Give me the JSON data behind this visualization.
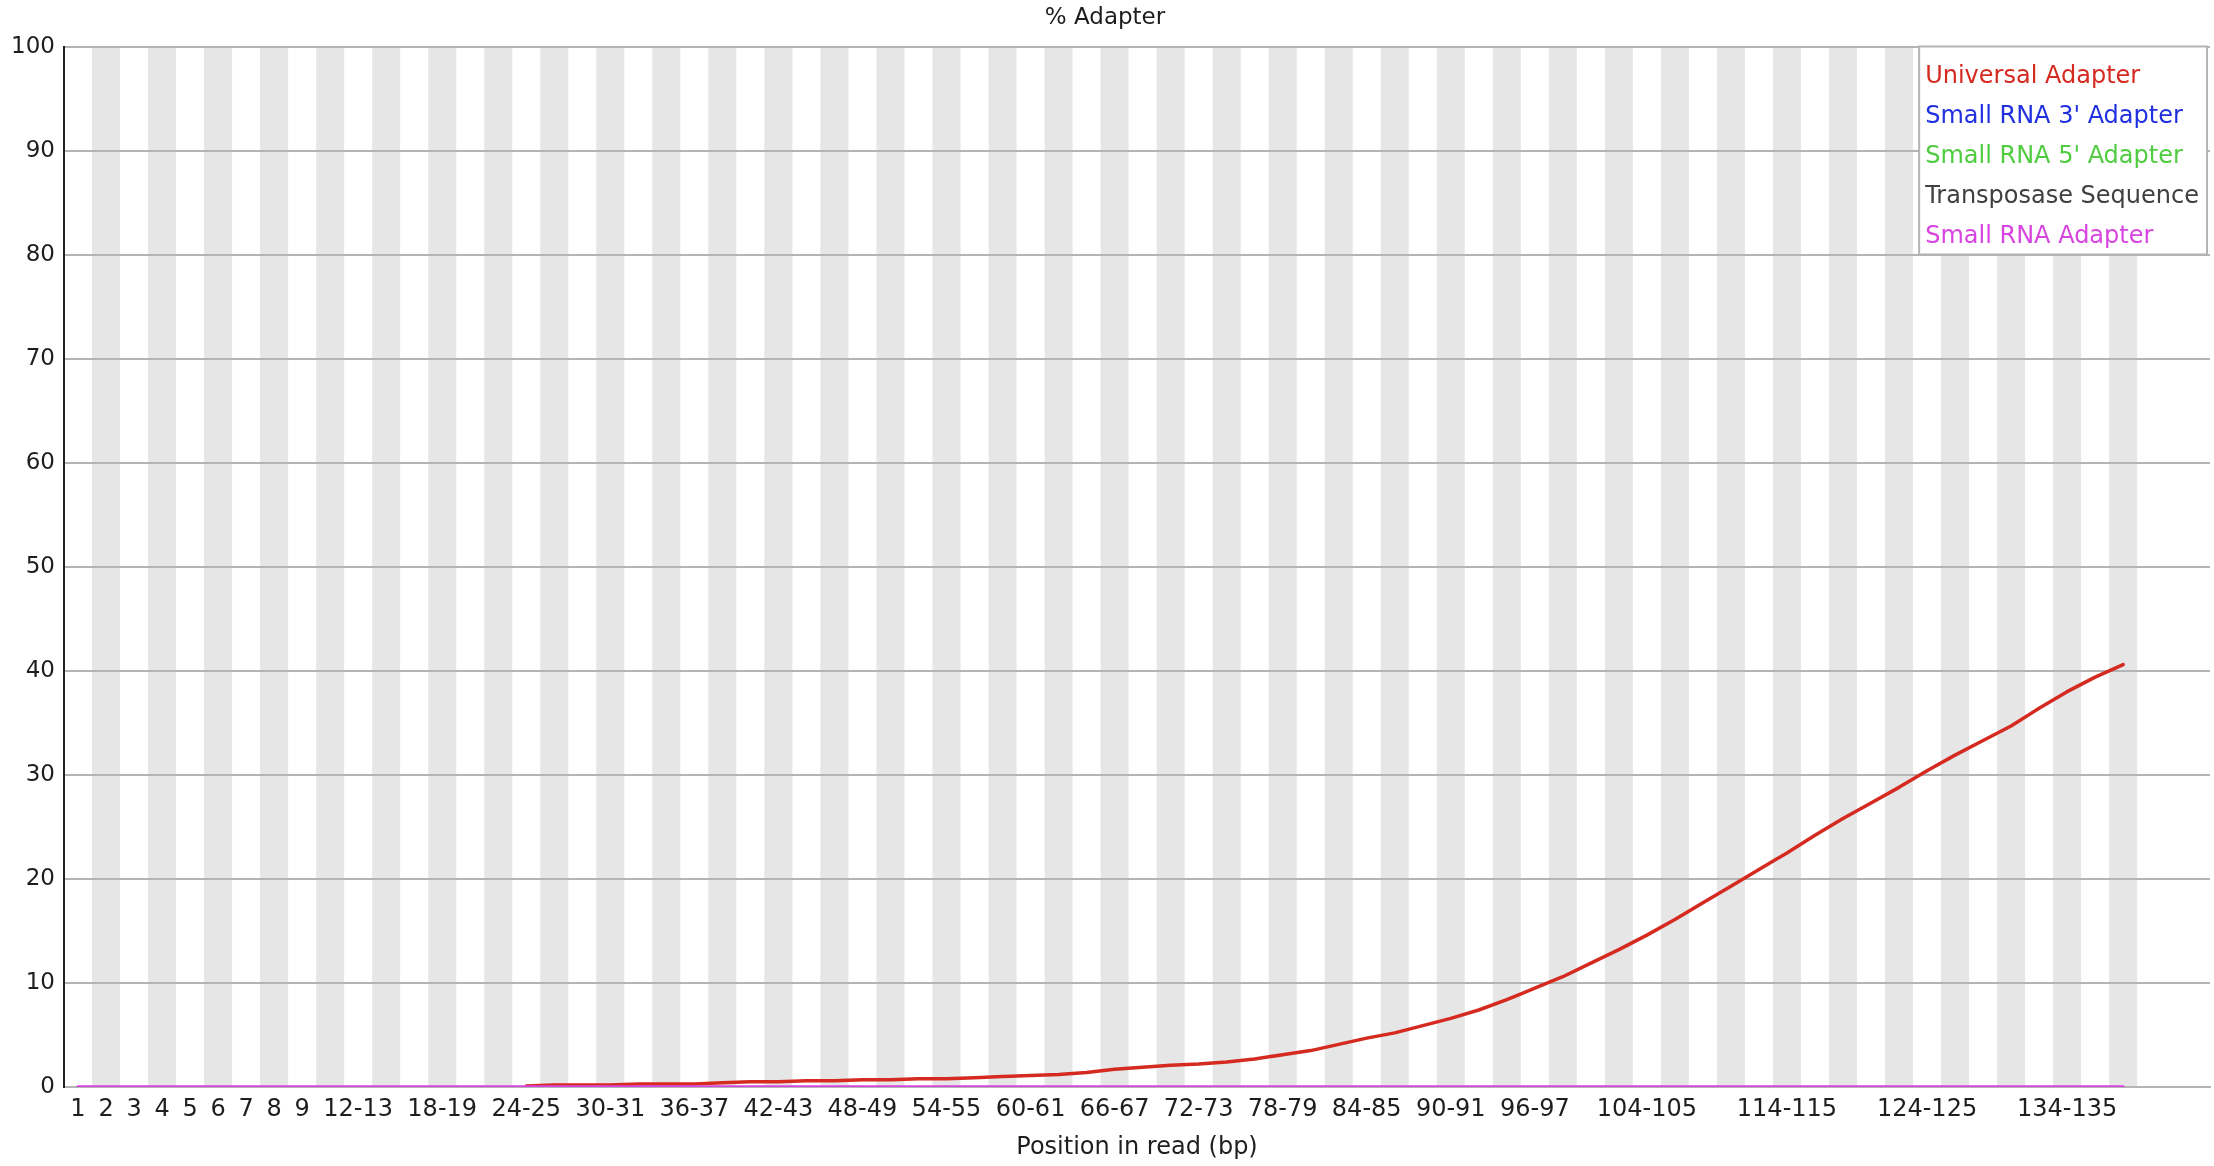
{
  "chart_data": {
    "type": "line",
    "title": "% Adapter",
    "xlabel": "Position in read (bp)",
    "categories": [
      "1",
      "2",
      "3",
      "4",
      "5",
      "6",
      "7",
      "8",
      "9",
      null,
      "12-13",
      null,
      null,
      "18-19",
      null,
      null,
      "24-25",
      null,
      null,
      "30-31",
      null,
      null,
      "36-37",
      null,
      null,
      "42-43",
      null,
      null,
      "48-49",
      null,
      null,
      "54-55",
      null,
      null,
      "60-61",
      null,
      null,
      "66-67",
      null,
      null,
      "72-73",
      null,
      null,
      "78-79",
      null,
      null,
      "84-85",
      null,
      null,
      "90-91",
      null,
      null,
      "96-97",
      null,
      null,
      null,
      "104-105",
      null,
      null,
      null,
      null,
      "114-115",
      null,
      null,
      null,
      null,
      "124-125",
      null,
      null,
      null,
      null,
      "134-135",
      null,
      null
    ],
    "ylim": [
      0,
      100
    ],
    "yticks": [
      0,
      10,
      20,
      30,
      40,
      50,
      60,
      70,
      80,
      90,
      100
    ],
    "grid": "y",
    "legend": "top right",
    "marker": "none",
    "series": [
      {
        "name": "Universal Adapter",
        "color": "#d42a20",
        "values": [
          null,
          null,
          null,
          null,
          null,
          null,
          null,
          null,
          null,
          null,
          null,
          null,
          null,
          null,
          null,
          null,
          0.1,
          0.2,
          0.2,
          0.2,
          0.3,
          0.3,
          0.3,
          0.4,
          0.5,
          0.5,
          0.6,
          0.6,
          0.7,
          0.7,
          0.8,
          0.8,
          0.9,
          1.0,
          1.1,
          1.2,
          1.4,
          1.7,
          1.9,
          2.1,
          2.2,
          2.4,
          2.7,
          3.1,
          3.5,
          4.1,
          4.7,
          5.2,
          5.9,
          6.6,
          7.4,
          8.4,
          9.5,
          10.6,
          11.9,
          13.2,
          14.6,
          16.1,
          17.7,
          19.3,
          20.9,
          22.5,
          24.2,
          25.8,
          27.3,
          28.8,
          30.4,
          31.9,
          33.3,
          34.7,
          36.4,
          38.0,
          39.4,
          40.6
        ]
      },
      {
        "name": "Small RNA 3' Adapter",
        "color": "#2030e0",
        "values": [
          null,
          null,
          null,
          null,
          null,
          null,
          null,
          null,
          null,
          null,
          null,
          null,
          null,
          null,
          null,
          null,
          null,
          null,
          null,
          null,
          null,
          null,
          null,
          null,
          null,
          null,
          null,
          null,
          null,
          null,
          null,
          null,
          null,
          null,
          null,
          null,
          null,
          null,
          null,
          null,
          null,
          null,
          null,
          null,
          null,
          null,
          null,
          null,
          null,
          null,
          null,
          null,
          null,
          null,
          null,
          null,
          null,
          null,
          null,
          null,
          null,
          null,
          null,
          null,
          null,
          null,
          null,
          null,
          null,
          null,
          null,
          null,
          null,
          null
        ]
      },
      {
        "name": "Small RNA 5' Adapter",
        "color": "#50cc40",
        "values": [
          null,
          null,
          null,
          null,
          null,
          null,
          null,
          null,
          null,
          null,
          null,
          null,
          null,
          null,
          null,
          null,
          null,
          null,
          null,
          null,
          null,
          null,
          null,
          null,
          null,
          null,
          null,
          null,
          null,
          null,
          null,
          null,
          null,
          null,
          null,
          null,
          null,
          null,
          null,
          null,
          null,
          null,
          null,
          null,
          null,
          null,
          null,
          null,
          null,
          null,
          null,
          null,
          null,
          null,
          null,
          null,
          null,
          null,
          null,
          null,
          null,
          null,
          null,
          null,
          null,
          null,
          null,
          null,
          null,
          null,
          null,
          null,
          null,
          null
        ]
      },
      {
        "name": "Transposase Sequence",
        "color": "#404040",
        "values": [
          null,
          null,
          null,
          null,
          null,
          null,
          null,
          null,
          null,
          null,
          null,
          null,
          null,
          null,
          null,
          null,
          null,
          null,
          null,
          null,
          null,
          null,
          null,
          null,
          null,
          null,
          null,
          null,
          null,
          null,
          null,
          null,
          null,
          null,
          null,
          null,
          null,
          null,
          null,
          null,
          null,
          null,
          null,
          null,
          null,
          null,
          null,
          null,
          null,
          null,
          null,
          null,
          null,
          null,
          null,
          null,
          null,
          null,
          null,
          null,
          null,
          null,
          null,
          null,
          null,
          null,
          null,
          null,
          null,
          null,
          null,
          null,
          null,
          null
        ]
      },
      {
        "name": "Small RNA Adapter",
        "color": "#d844e0",
        "values": [
          0,
          0,
          0,
          0,
          0,
          0,
          0,
          0,
          0,
          0,
          0,
          0,
          0,
          0,
          0,
          0,
          0,
          0,
          0,
          0,
          0,
          0,
          0,
          0,
          0,
          0,
          0,
          0,
          0,
          0,
          0,
          0,
          0,
          0,
          0,
          0,
          0,
          0,
          0,
          0,
          0,
          0,
          0,
          0,
          0,
          0,
          0,
          0,
          0,
          0,
          0,
          0,
          0,
          0,
          0,
          0,
          0,
          0,
          0,
          0,
          0,
          0,
          0,
          0,
          0,
          0,
          0,
          0,
          0,
          0,
          0,
          0,
          0,
          0
        ]
      }
    ]
  }
}
